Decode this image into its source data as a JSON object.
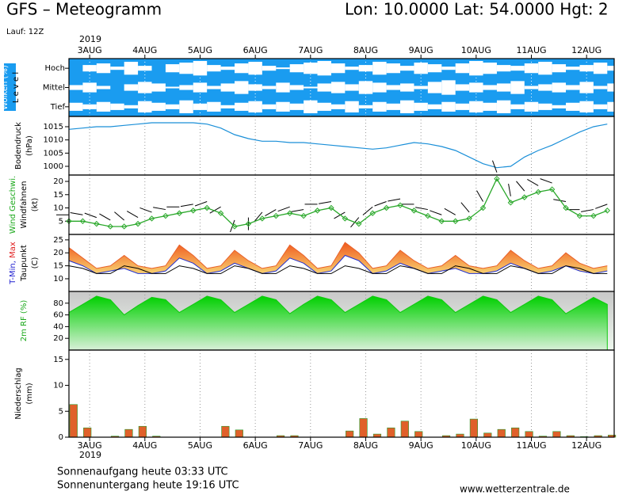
{
  "header": {
    "title": "GFS – Meteogramm",
    "location": "Lon: 10.0000 Lat: 54.0000 Hgt: 2",
    "run": "Lauf: 12Z"
  },
  "time_axis": {
    "year": "2019",
    "xlim": [
      0,
      237
    ],
    "x": [
      0,
      6,
      12,
      18,
      24,
      30,
      36,
      42,
      48,
      54,
      60,
      66,
      72,
      78,
      84,
      90,
      96,
      102,
      108,
      114,
      120,
      126,
      132,
      138,
      144,
      150,
      156,
      162,
      168,
      174,
      180,
      186,
      192,
      198,
      204,
      210,
      216,
      222,
      228,
      234
    ],
    "xticks": [
      {
        "value": 9,
        "label": "3AUG"
      },
      {
        "value": 33,
        "label": "4AUG"
      },
      {
        "value": 57,
        "label": "5AUG"
      },
      {
        "value": 81,
        "label": "6AUG"
      },
      {
        "value": 105,
        "label": "7AUG"
      },
      {
        "value": 129,
        "label": "8AUG"
      },
      {
        "value": 153,
        "label": "9AUG"
      },
      {
        "value": 177,
        "label": "10AUG"
      },
      {
        "value": 201,
        "label": "11AUG"
      },
      {
        "value": 225,
        "label": "12AUG"
      }
    ],
    "grid": true
  },
  "chart_data": [
    {
      "type": "clouds",
      "ylabel": [
        [
          {
            "text": "Wolken (%)",
            "color": "#ffffff"
          }
        ],
        [
          {
            "text": "L e v e l"
          }
        ]
      ],
      "color": "#1a9cf0",
      "ylim": [
        0,
        100
      ],
      "series": [
        {
          "name": "Hoch",
          "values": [
            0,
            40,
            60,
            20,
            80,
            30,
            0,
            50,
            70,
            90,
            40,
            20,
            60,
            80,
            30,
            10,
            50,
            70,
            90,
            60,
            20,
            40,
            80,
            60,
            30,
            70,
            50,
            20,
            60,
            90,
            70,
            40,
            30,
            60,
            80,
            50,
            20,
            40,
            70,
            30
          ]
        },
        {
          "name": "Mittel",
          "values": [
            30,
            60,
            20,
            0,
            40,
            70,
            50,
            10,
            30,
            60,
            20,
            50,
            80,
            40,
            20,
            60,
            30,
            10,
            50,
            70,
            40,
            80,
            60,
            30,
            50,
            20,
            70,
            90,
            40,
            60,
            30,
            50,
            80,
            20,
            40,
            60,
            30,
            70,
            20,
            50
          ]
        },
        {
          "name": "Tief",
          "values": [
            50,
            30,
            60,
            40,
            20,
            70,
            50,
            30,
            80,
            40,
            60,
            20,
            50,
            70,
            30,
            60,
            40,
            80,
            50,
            30,
            70,
            20,
            60,
            40,
            80,
            50,
            30,
            60,
            40,
            70,
            50,
            80,
            30,
            60,
            40,
            20,
            50,
            70,
            30,
            60
          ]
        }
      ]
    },
    {
      "type": "line",
      "ylabel": [
        [
          {
            "text": "Bodendruck"
          }
        ],
        [
          {
            "text": "(hPa)"
          }
        ]
      ],
      "ylim": [
        996.7,
        1018.9
      ],
      "yticks": [
        1000,
        1005,
        1010,
        1015
      ],
      "series": [
        {
          "color": "#1a8fd8",
          "values": [
            1014,
            1014.5,
            1015,
            1015,
            1015.5,
            1016,
            1016.5,
            1016.5,
            1016.5,
            1016.5,
            1016,
            1014.5,
            1012,
            1010.5,
            1009.5,
            1009.5,
            1009,
            1009,
            1008.5,
            1008,
            1007.5,
            1007,
            1006.5,
            1007,
            1008,
            1009,
            1008.5,
            1007.5,
            1006,
            1003.5,
            1001,
            999.5,
            1000,
            1003.5,
            1006,
            1008,
            1010.5,
            1013,
            1015,
            1016
          ]
        }
      ]
    },
    {
      "type": "wind",
      "ylabel": [
        [
          {
            "text": "Wind Geschwi.",
            "color": "#1aa81a"
          }
        ],
        [
          {
            "text": "Windfahnen"
          }
        ],
        [
          {
            "text": "(kt)"
          }
        ]
      ],
      "ylim": [
        0,
        22.4
      ],
      "yticks": [
        5,
        10,
        15,
        20
      ],
      "series": [
        {
          "color": "#2aa82a",
          "values": [
            5,
            5,
            4,
            3,
            3,
            4,
            6,
            7,
            8,
            9,
            10,
            8,
            3,
            4,
            6,
            7,
            8,
            7,
            9,
            10,
            6,
            4,
            8,
            10,
            11,
            9,
            7,
            5,
            5,
            6,
            10,
            21,
            12,
            14,
            16,
            17,
            10,
            7,
            7,
            9
          ]
        }
      ],
      "direction": [
        270,
        280,
        290,
        300,
        310,
        300,
        290,
        280,
        270,
        260,
        250,
        240,
        200,
        180,
        220,
        240,
        250,
        260,
        270,
        260,
        240,
        220,
        230,
        250,
        260,
        270,
        280,
        290,
        300,
        320,
        330,
        340,
        350,
        320,
        300,
        290,
        280,
        270,
        260,
        250
      ]
    },
    {
      "type": "temperature",
      "ylabel": [
        [
          {
            "text": "T-Min,",
            "color": "#2020d0"
          },
          {
            "text": " Max",
            "color": "#e02020"
          }
        ],
        [
          {
            "text": "Taupunkt"
          }
        ],
        [
          {
            "text": "(C)"
          }
        ]
      ],
      "ylim": [
        5.1,
        27.1
      ],
      "yticks": [
        10,
        15,
        20,
        25
      ],
      "series": [
        {
          "color": "#e8602a",
          "values": [
            22,
            18,
            14,
            15,
            19,
            15,
            14,
            15,
            23,
            19,
            14,
            15,
            21,
            17,
            14,
            15,
            23,
            19,
            14,
            15,
            24,
            20,
            14,
            15,
            21,
            17,
            14,
            15,
            19,
            15,
            14,
            15,
            21,
            17,
            14,
            15,
            20,
            16,
            14,
            15
          ]
        },
        {
          "color": "#2030d0",
          "values": [
            17,
            15,
            12,
            13,
            14,
            12,
            12,
            13,
            18,
            16,
            12,
            13,
            16,
            14,
            12,
            13,
            18,
            16,
            12,
            13,
            19,
            17,
            12,
            13,
            16,
            14,
            12,
            13,
            14,
            12,
            12,
            13,
            16,
            14,
            12,
            13,
            15,
            13,
            12,
            13
          ]
        },
        {
          "color": "#000000",
          "values": [
            15,
            14,
            12,
            12,
            15,
            14,
            12,
            12,
            15,
            14,
            12,
            12,
            15,
            14,
            12,
            12,
            15,
            14,
            12,
            12,
            15,
            14,
            12,
            12,
            15,
            14,
            12,
            12,
            15,
            14,
            12,
            12,
            15,
            14,
            12,
            12,
            15,
            14,
            12,
            12
          ]
        }
      ]
    },
    {
      "type": "area",
      "ylabel": [
        [
          {
            "text": "2m RF (%)",
            "color": "#1aa81a"
          }
        ]
      ],
      "ylim": [
        0,
        100
      ],
      "yticks": [
        20,
        40,
        60,
        80
      ],
      "series": [
        {
          "color": "#10c810",
          "values": [
            64,
            78,
            92,
            86,
            60,
            76,
            90,
            86,
            64,
            78,
            92,
            86,
            64,
            78,
            92,
            86,
            62,
            78,
            92,
            86,
            64,
            78,
            92,
            86,
            64,
            78,
            92,
            86,
            64,
            78,
            92,
            86,
            64,
            78,
            92,
            86,
            62,
            76,
            90,
            78
          ]
        }
      ]
    },
    {
      "type": "bar",
      "ylabel": [
        [
          {
            "text": "Niederschlag"
          }
        ],
        [
          {
            "text": "(mm)"
          }
        ]
      ],
      "ylim": [
        0,
        16.8
      ],
      "yticks": [
        0,
        5,
        10,
        15
      ],
      "series": [
        {
          "color": "#e0602a",
          "values": [
            6.3,
            1.8,
            0,
            0.2,
            1.5,
            2.1,
            0.2,
            0,
            0,
            0,
            0,
            2.1,
            1.4,
            0,
            0,
            0.3,
            0.3,
            0,
            0,
            0,
            1.2,
            3.6,
            0.6,
            1.8,
            3.1,
            1.1,
            0,
            0.3,
            0.6,
            3.5,
            0.8,
            1.5,
            1.8,
            1.1,
            0.2,
            1.1,
            0.3,
            0.1,
            0.3,
            0.4
          ]
        }
      ]
    }
  ],
  "footer": {
    "sunrise": "Sonnenaufgang heute 03:33 UTC",
    "sunset": "Sonnenuntergang heute 19:16 UTC",
    "site": "www.wetterzentrale.de"
  }
}
